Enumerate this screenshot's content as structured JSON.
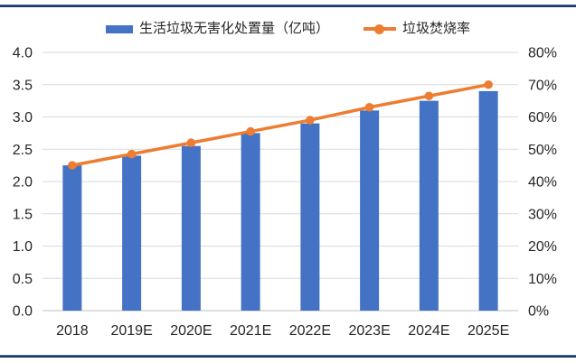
{
  "legend": {
    "items": [
      {
        "label": "生活垃圾无害化处置量（亿吨）",
        "marker": "bar-swatch"
      },
      {
        "label": "垃圾焚烧率",
        "marker": "line-dot"
      }
    ]
  },
  "colors": {
    "bar": "#4472C4",
    "line": "#ED7D31",
    "grid": "#D9D9D9",
    "axis_line": "#BFBFBF",
    "text": "#262626",
    "border_dark": "#1F3864",
    "border_light": "#3A6EA5",
    "background": "#FFFFFF"
  },
  "chart_data": {
    "type": "bar",
    "combo": true,
    "title": "",
    "categories": [
      "2018",
      "2019E",
      "2020E",
      "2021E",
      "2022E",
      "2023E",
      "2024E",
      "2025E"
    ],
    "series": [
      {
        "name": "生活垃圾无害化处置量（亿吨）",
        "type": "bar",
        "axis": "left",
        "values": [
          2.25,
          2.4,
          2.55,
          2.75,
          2.9,
          3.1,
          3.25,
          3.4
        ]
      },
      {
        "name": "垃圾焚烧率",
        "type": "line",
        "axis": "right",
        "values": [
          45,
          48.5,
          52,
          55.5,
          59,
          63,
          66.5,
          70
        ]
      }
    ],
    "left_axis": {
      "min": 0,
      "max": 4,
      "step": 0.5,
      "tick_labels": [
        "0.0",
        "0.5",
        "1.0",
        "1.5",
        "2.0",
        "2.5",
        "3.0",
        "3.5",
        "4.0"
      ]
    },
    "right_axis": {
      "min": 0,
      "max": 80,
      "step": 10,
      "tick_labels": [
        "0%",
        "10%",
        "20%",
        "30%",
        "40%",
        "50%",
        "60%",
        "70%",
        "80%"
      ]
    },
    "grid": true,
    "legend_position": "top"
  }
}
